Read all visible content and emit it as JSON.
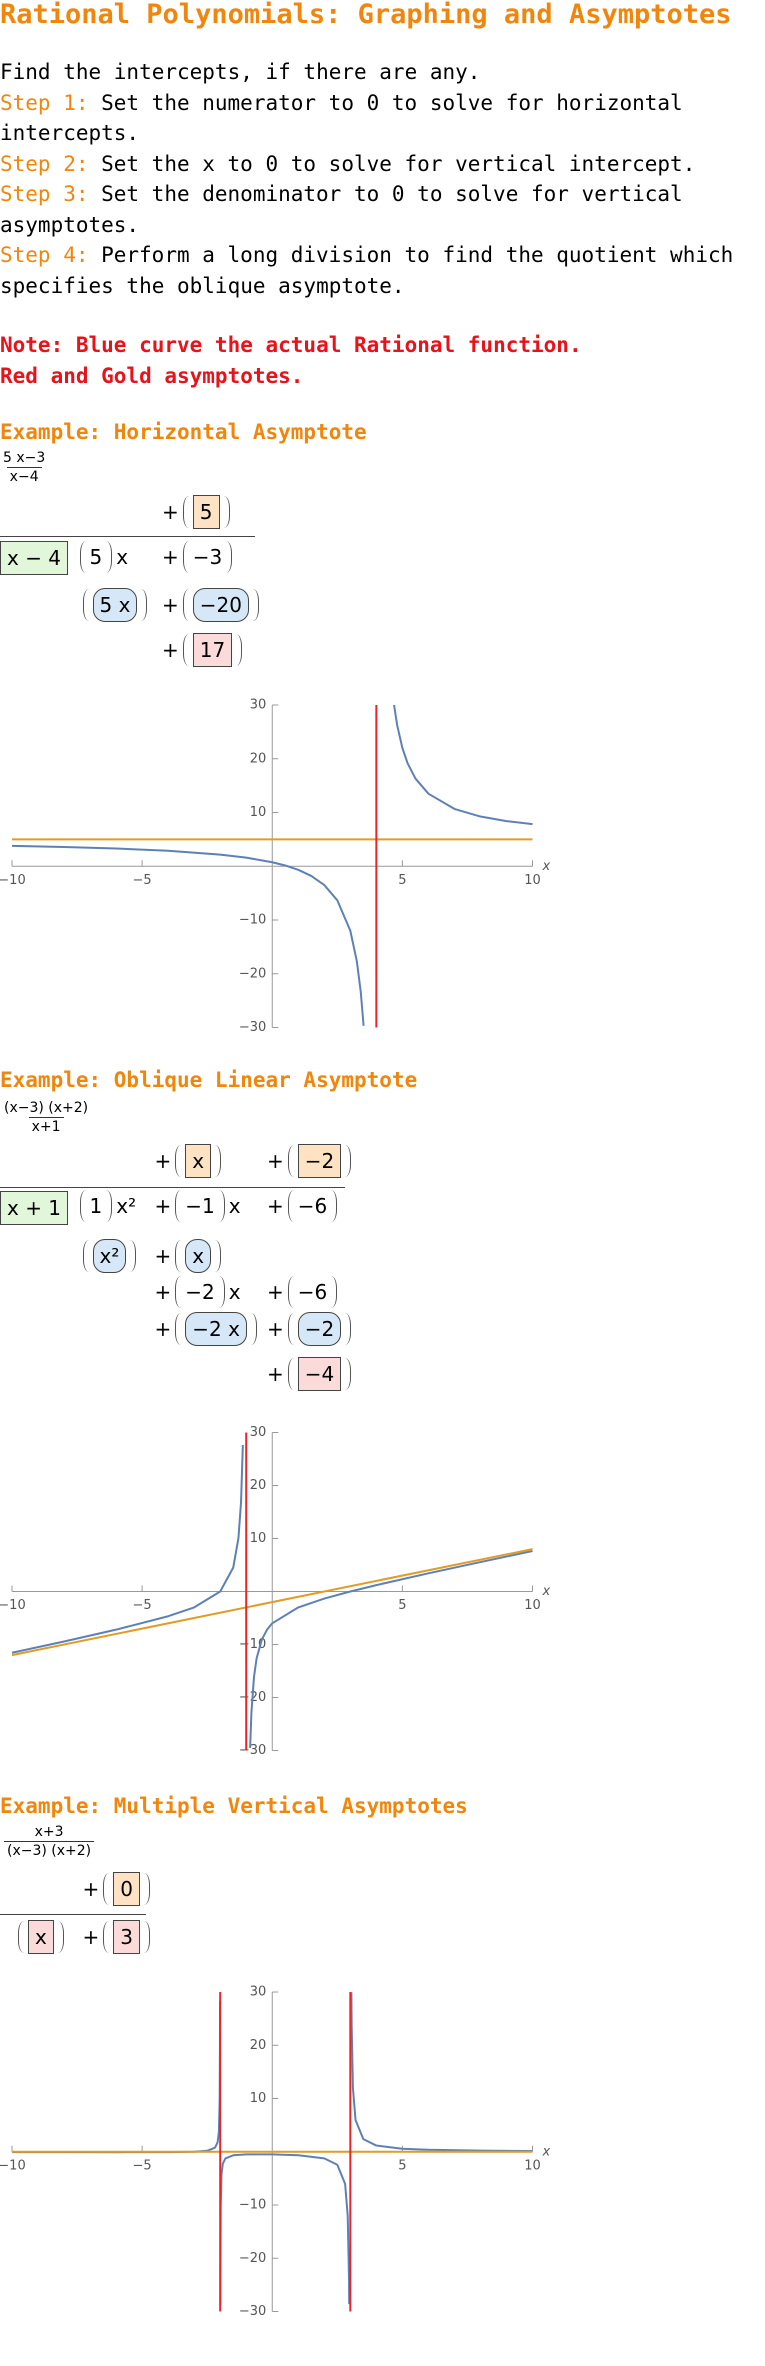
{
  "title": "Rational Polynomials: Graphing and Asymptotes",
  "intro": "Find the intercepts, if there are any.",
  "steps": [
    {
      "label": "Step 1:",
      "text": "Set the numerator to 0 to solve for horizontal intercepts."
    },
    {
      "label": "Step 2:",
      "text": "Set the x to 0 to solve for vertical intercept."
    },
    {
      "label": "Step 3:",
      "text": "Set the denominator to 0 to solve for vertical asymptotes."
    },
    {
      "label": "Step 4:",
      "text": "Perform a long division to find the quotient which specifies the oblique asymptote."
    }
  ],
  "notes": [
    "Note: Blue curve the actual Rational function.",
    "Red and Gold asymptotes."
  ],
  "examples": [
    {
      "heading": "Example: Horizontal Asymptote",
      "fraction": {
        "numerator": "5 x−3",
        "denominator": "x−4"
      },
      "division": [
        {
          "sign": "+",
          "term": "5",
          "box": "orange"
        },
        {
          "term": "x − 4",
          "box": "green",
          "parens": false
        },
        {
          "term": "5",
          "var": "x"
        },
        {
          "sign": "+",
          "term": "−3"
        },
        {
          "term": "5 x",
          "box": "blue"
        },
        {
          "sign": "+",
          "term": "−20",
          "box": "blue"
        },
        {
          "sign": "+",
          "term": "17",
          "box": "pink"
        }
      ]
    },
    {
      "heading": "Example: Oblique Linear Asymptote",
      "fraction": {
        "numerator": "(x−3) (x+2)",
        "denominator": "x+1"
      },
      "division": [
        {
          "sign": "+",
          "term": "x",
          "box": "orange"
        },
        {
          "sign": "+",
          "term": "−2",
          "box": "orange"
        },
        {
          "term": "x + 1",
          "box": "green",
          "parens": false
        },
        {
          "term": "1",
          "var": "x²"
        },
        {
          "sign": "+",
          "term": "−1",
          "var": "x"
        },
        {
          "sign": "+",
          "term": "−6"
        },
        {
          "term": "x²",
          "box": "blue"
        },
        {
          "sign": "+",
          "term": "x",
          "box": "blue"
        },
        {
          "sign": "+",
          "term": "−2",
          "var": "x"
        },
        {
          "sign": "+",
          "term": "−6"
        },
        {
          "sign": "+",
          "term": "−2 x",
          "box": "blue"
        },
        {
          "sign": "+",
          "term": "−2",
          "box": "blue"
        },
        {
          "sign": "+",
          "term": "−4",
          "box": "pink"
        }
      ]
    },
    {
      "heading": "Example: Multiple Vertical Asymptotes",
      "fraction": {
        "numerator": "x+3",
        "denominator": "(x−3) (x+2)"
      },
      "division": [
        {
          "sign": "+",
          "term": "0",
          "box": "orange"
        },
        {
          "term": "x",
          "box": "pink"
        },
        {
          "sign": "+",
          "term": "3",
          "box": "pink"
        }
      ]
    }
  ],
  "chart_data": [
    {
      "type": "line",
      "xlabel": "x",
      "xlim": [
        -10,
        10
      ],
      "ylim": [
        -30,
        30
      ],
      "xticks": [
        {
          "value": -10,
          "label": "−10"
        },
        {
          "value": -5,
          "label": "−5"
        },
        5,
        10
      ],
      "yticks": [
        {
          "value": -30,
          "label": "−30"
        },
        {
          "value": -20,
          "label": "−20"
        },
        {
          "value": -10,
          "label": "−10"
        },
        10,
        20,
        30
      ],
      "series": [
        {
          "color": "#5e81b5",
          "x": [
            -10,
            -8,
            -6,
            -4,
            -2,
            -1,
            0,
            0.5,
            1,
            1.5,
            2,
            2.5,
            3,
            3.25,
            3.4,
            3.51,
            null,
            4.68,
            4.8,
            5,
            5.2,
            5.5,
            6,
            7,
            8,
            9,
            10
          ],
          "values": [
            3.786,
            3.583,
            3.3,
            2.875,
            2.167,
            1.6,
            0.75,
            0.143,
            -0.667,
            -1.8,
            -3.5,
            -6.333,
            -12,
            -17.667,
            -23.333,
            -29.69,
            null,
            30,
            26.25,
            22,
            19.167,
            16.333,
            13.5,
            10.667,
            9.25,
            8.4,
            7.833
          ]
        },
        {
          "color": "#e19c24",
          "x": [
            -10,
            10
          ],
          "values": [
            5,
            5
          ]
        },
        {
          "color": "#e8262a",
          "x": [
            4,
            4
          ],
          "values": [
            -30,
            30
          ]
        }
      ]
    },
    {
      "type": "line",
      "xlabel": "x",
      "xlim": [
        -10,
        10
      ],
      "ylim": [
        -30,
        30
      ],
      "xticks": [
        {
          "value": -10,
          "label": "−10"
        },
        {
          "value": -5,
          "label": "−5"
        },
        5,
        10
      ],
      "yticks": [
        {
          "value": -30,
          "label": "−30"
        },
        {
          "value": -20,
          "label": "−20"
        },
        {
          "value": -10,
          "label": "−10"
        },
        10,
        20,
        30
      ],
      "series": [
        {
          "color": "#5e81b5",
          "x": [
            -10,
            -8,
            -6,
            -4,
            -3,
            -2,
            -1.5,
            -1.3,
            -1.2,
            -1.13,
            null,
            -0.85,
            -0.8,
            -0.7,
            -0.6,
            -0.4,
            -0.2,
            0,
            1,
            2,
            3,
            4,
            6,
            8,
            10
          ],
          "values": [
            -11.556,
            -9.429,
            -7.2,
            -4.667,
            -3,
            0,
            4.5,
            10.033,
            16.8,
            27.64,
            null,
            -29.517,
            -22.8,
            -16.033,
            -12.6,
            -9.067,
            -7.2,
            -6,
            -3,
            -1.333,
            0,
            1.2,
            3.429,
            5.556,
            7.636
          ]
        },
        {
          "color": "#e19c24",
          "x": [
            -10,
            10
          ],
          "values": [
            -12,
            8
          ]
        },
        {
          "color": "#e8262a",
          "x": [
            -1,
            -1
          ],
          "values": [
            -30,
            30
          ]
        }
      ]
    },
    {
      "type": "line",
      "xlabel": "x",
      "xlim": [
        -10,
        10
      ],
      "ylim": [
        -30,
        30
      ],
      "xticks": [
        {
          "value": -10,
          "label": "−10"
        },
        {
          "value": -5,
          "label": "−5"
        },
        5,
        10
      ],
      "yticks": [
        {
          "value": -30,
          "label": "−30"
        },
        {
          "value": -20,
          "label": "−20"
        },
        {
          "value": -10,
          "label": "−10"
        },
        10,
        20,
        30
      ],
      "series": [
        {
          "color": "#5e81b5",
          "x": [
            -10,
            -8,
            -6,
            -4,
            -3,
            -2.5,
            -2.2,
            -2.1,
            -2.05,
            -2.02,
            -2.01,
            -2.007,
            null,
            -1.993,
            -1.99,
            -1.98,
            -1.95,
            -1.9,
            -1.8,
            -1.5,
            -1,
            0,
            1,
            2,
            2.5,
            2.8,
            2.9,
            2.95,
            2.958,
            null,
            3.04,
            3.05,
            3.1,
            3.2,
            3.5,
            4,
            5,
            6,
            8,
            10
          ],
          "values": [
            -0.067,
            -0.076,
            -0.083,
            -0.071,
            0,
            0.182,
            0.769,
            1.765,
            3.762,
            9.76,
            19.76,
            28.33,
            null,
            -28.81,
            -20.24,
            -10.24,
            -4.242,
            -2.245,
            -1.25,
            -0.667,
            -0.5,
            -0.5,
            -0.667,
            -1.25,
            -2.444,
            -6.042,
            -12.04,
            -24.04,
            -28.61,
            null,
            29.96,
            23.96,
            11.96,
            5.962,
            2.364,
            1.167,
            0.571,
            0.375,
            0.22,
            0.135
          ]
        },
        {
          "color": "#e19c24",
          "x": [
            -10,
            10
          ],
          "values": [
            0,
            0
          ]
        },
        {
          "color": "#e8262a",
          "x": [
            -2,
            -2,
            null,
            3,
            3
          ],
          "values": [
            -30,
            30,
            null,
            -30,
            30
          ]
        }
      ]
    }
  ]
}
